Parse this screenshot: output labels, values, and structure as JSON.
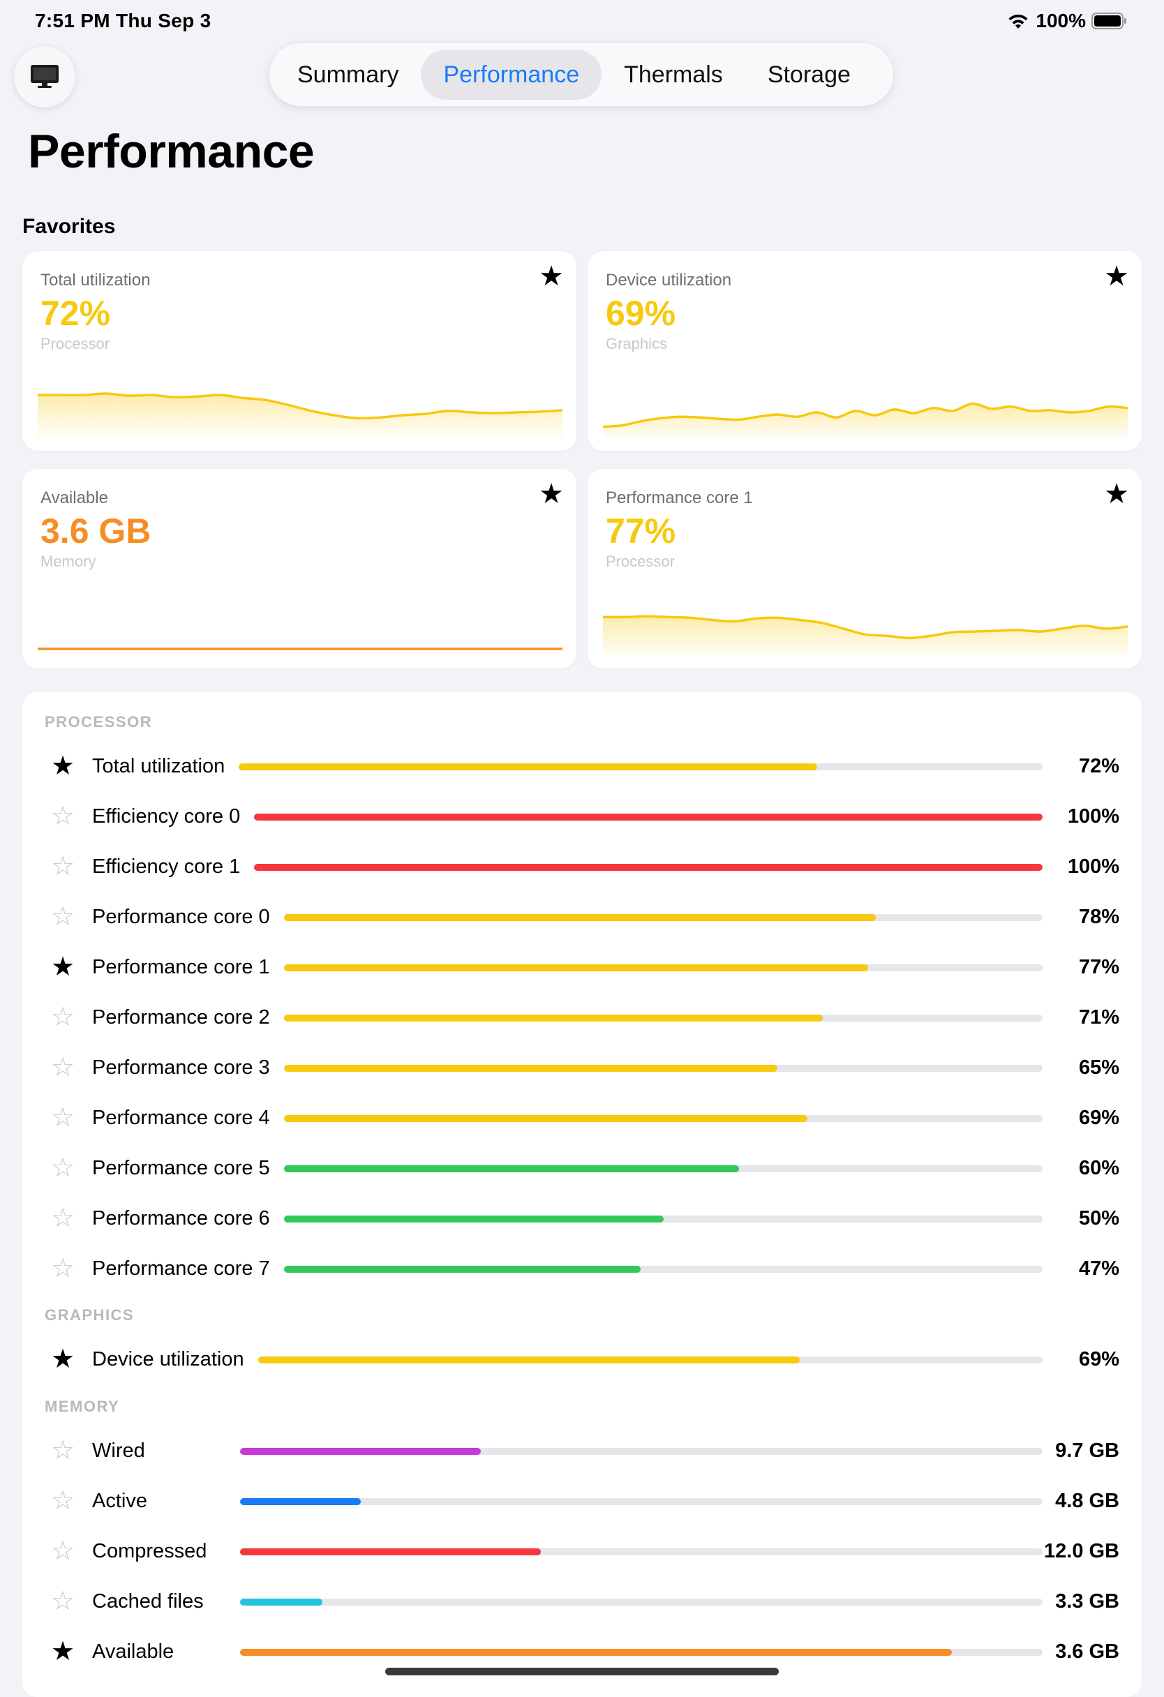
{
  "status_bar": {
    "time": "7:51 PM   Thu Sep 3",
    "battery": "100%"
  },
  "tabs": [
    {
      "label": "Summary",
      "active": false
    },
    {
      "label": "Performance",
      "active": true
    },
    {
      "label": "Thermals",
      "active": false
    },
    {
      "label": "Storage",
      "active": false
    }
  ],
  "page_title": "Performance",
  "favorites_heading": "Favorites",
  "favorites": [
    {
      "label": "Total utilization",
      "value": "72%",
      "sub": "Processor",
      "color": "#f7c90f",
      "fill": true,
      "trend": [
        0.52,
        0.52,
        0.52,
        0.54,
        0.51,
        0.52,
        0.49,
        0.5,
        0.52,
        0.48,
        0.45,
        0.38,
        0.3,
        0.24,
        0.2,
        0.21,
        0.24,
        0.26,
        0.3,
        0.28,
        0.27,
        0.28,
        0.29,
        0.31
      ]
    },
    {
      "label": "Device utilization",
      "value": "69%",
      "sub": "Graphics",
      "color": "#f7c90f",
      "fill": true,
      "trend": [
        0.08,
        0.1,
        0.16,
        0.2,
        0.22,
        0.21,
        0.19,
        0.18,
        0.22,
        0.25,
        0.22,
        0.28,
        0.21,
        0.3,
        0.24,
        0.32,
        0.27,
        0.34,
        0.3,
        0.4,
        0.33,
        0.36,
        0.3,
        0.31,
        0.28,
        0.3,
        0.36,
        0.34
      ]
    },
    {
      "label": "Available",
      "value": "3.6 GB",
      "sub": "Memory",
      "color": "#f58e25",
      "fill": false,
      "trend": [
        0.02,
        0.02,
        0.02,
        0.02,
        0.02,
        0.02,
        0.02,
        0.02,
        0.02,
        0.02,
        0.02,
        0.02
      ]
    },
    {
      "label": "Performance core 1",
      "value": "77%",
      "sub": "Processor",
      "color": "#f7c90f",
      "fill": true,
      "trend": [
        0.46,
        0.46,
        0.47,
        0.46,
        0.45,
        0.42,
        0.4,
        0.44,
        0.45,
        0.42,
        0.38,
        0.3,
        0.22,
        0.2,
        0.17,
        0.2,
        0.25,
        0.26,
        0.27,
        0.28,
        0.26,
        0.3,
        0.34,
        0.3,
        0.33
      ]
    }
  ],
  "sections": [
    {
      "title": "PROCESSOR",
      "rows": [
        {
          "label": "Total utilization",
          "value": "72%",
          "fraction": 0.72,
          "color": "#f7c90f",
          "starred": true
        },
        {
          "label": "Efficiency core 0",
          "value": "100%",
          "fraction": 1.0,
          "color": "#f5363d",
          "starred": false
        },
        {
          "label": "Efficiency core 1",
          "value": "100%",
          "fraction": 1.0,
          "color": "#f5363d",
          "starred": false
        },
        {
          "label": "Performance core 0",
          "value": "78%",
          "fraction": 0.78,
          "color": "#f7c90f",
          "starred": false
        },
        {
          "label": "Performance core 1",
          "value": "77%",
          "fraction": 0.77,
          "color": "#f7c90f",
          "starred": true
        },
        {
          "label": "Performance core 2",
          "value": "71%",
          "fraction": 0.71,
          "color": "#f7c90f",
          "starred": false
        },
        {
          "label": "Performance core 3",
          "value": "65%",
          "fraction": 0.65,
          "color": "#f7c90f",
          "starred": false
        },
        {
          "label": "Performance core 4",
          "value": "69%",
          "fraction": 0.69,
          "color": "#f7c90f",
          "starred": false
        },
        {
          "label": "Performance core 5",
          "value": "60%",
          "fraction": 0.6,
          "color": "#34c759",
          "starred": false
        },
        {
          "label": "Performance core 6",
          "value": "50%",
          "fraction": 0.5,
          "color": "#34c759",
          "starred": false
        },
        {
          "label": "Performance core 7",
          "value": "47%",
          "fraction": 0.47,
          "color": "#34c759",
          "starred": false
        }
      ]
    },
    {
      "title": "GRAPHICS",
      "rows": [
        {
          "label": "Device utilization",
          "value": "69%",
          "fraction": 0.69,
          "color": "#f7c90f",
          "starred": true
        }
      ]
    },
    {
      "title": "MEMORY",
      "rows": [
        {
          "label": "Wired",
          "value": "9.7 GB",
          "fraction": 0.3,
          "color": "#c53ad6",
          "starred": false
        },
        {
          "label": "Active",
          "value": "4.8 GB",
          "fraction": 0.15,
          "color": "#1a7cf5",
          "starred": false
        },
        {
          "label": "Compressed",
          "value": "12.0 GB",
          "fraction": 0.375,
          "color": "#f5363d",
          "starred": false
        },
        {
          "label": "Cached files",
          "value": "3.3 GB",
          "fraction": 0.103,
          "color": "#23c2dd",
          "starred": false
        },
        {
          "label": "Available",
          "value": "3.6 GB",
          "fraction": 0.887,
          "color": "#f58e25",
          "starred": true
        }
      ]
    }
  ]
}
